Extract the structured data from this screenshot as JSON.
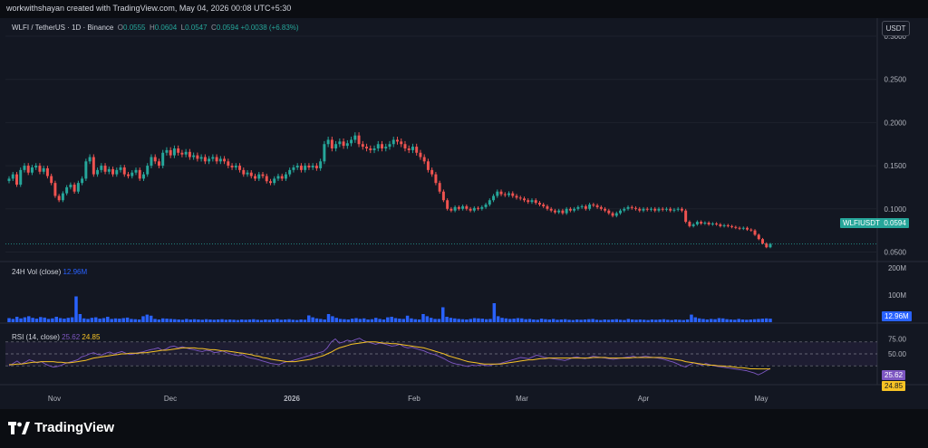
{
  "header": {
    "attribution": "workwithshayan created with TradingView.com, May 04, 2026 00:08 UTC+5:30"
  },
  "legend": {
    "symbol": "WLFI / TetherUS · 1D · Binance",
    "o_label": "O",
    "o_value": "0.0555",
    "h_label": "H",
    "h_value": "0.0604",
    "l_label": "L",
    "l_value": "0.0547",
    "c_label": "C",
    "c_value": "0.0594",
    "change": "+0.0038 (+6.83%)"
  },
  "currency_button": "USDT",
  "volume_legend": {
    "label": "24H Vol (close)",
    "value": "12.96M"
  },
  "rsi_legend": {
    "label": "RSI (14, close)",
    "rsi_value": "25.62",
    "ma_value": "24.85"
  },
  "badges": {
    "symbol": "WLFIUSDT",
    "price": "0.0594",
    "volume": "12.96M",
    "rsi": "25.62",
    "rsi_ma": "24.85"
  },
  "footer": {
    "brand": "TradingView"
  },
  "colors": {
    "up": "#26a69a",
    "down": "#ef5350",
    "volume_bar": "#2962ff",
    "rsi_line": "#7e57c2",
    "rsi_ma": "#f7c325",
    "background": "#131722"
  },
  "chart_data": [
    {
      "type": "candlestick",
      "title": "",
      "y_ticks": [
        "0.3000",
        "0.2500",
        "0.2000",
        "0.1500",
        "0.1000",
        "0.0500"
      ],
      "ylim": [
        0.04,
        0.3
      ],
      "x_ticks": [
        "Nov",
        "Dec",
        "2026",
        "Feb",
        "Mar",
        "Apr",
        "May"
      ],
      "close_series": [
        0.135,
        0.14,
        0.128,
        0.145,
        0.15,
        0.142,
        0.148,
        0.15,
        0.143,
        0.147,
        0.138,
        0.13,
        0.115,
        0.11,
        0.118,
        0.125,
        0.128,
        0.12,
        0.13,
        0.135,
        0.155,
        0.16,
        0.14,
        0.145,
        0.15,
        0.143,
        0.146,
        0.14,
        0.145,
        0.148,
        0.14,
        0.138,
        0.142,
        0.145,
        0.135,
        0.14,
        0.15,
        0.16,
        0.155,
        0.15,
        0.165,
        0.168,
        0.162,
        0.17,
        0.165,
        0.163,
        0.166,
        0.16,
        0.162,
        0.158,
        0.16,
        0.155,
        0.158,
        0.16,
        0.155,
        0.158,
        0.155,
        0.15,
        0.148,
        0.15,
        0.145,
        0.14,
        0.142,
        0.138,
        0.135,
        0.14,
        0.138,
        0.132,
        0.13,
        0.135,
        0.138,
        0.135,
        0.14,
        0.145,
        0.148,
        0.15,
        0.145,
        0.15,
        0.148,
        0.15,
        0.147,
        0.155,
        0.175,
        0.18,
        0.17,
        0.175,
        0.178,
        0.173,
        0.176,
        0.18,
        0.185,
        0.175,
        0.172,
        0.17,
        0.168,
        0.17,
        0.175,
        0.17,
        0.172,
        0.175,
        0.18,
        0.178,
        0.175,
        0.17,
        0.168,
        0.172,
        0.165,
        0.16,
        0.155,
        0.145,
        0.14,
        0.13,
        0.12,
        0.11,
        0.1,
        0.098,
        0.102,
        0.1,
        0.103,
        0.1,
        0.098,
        0.101,
        0.1,
        0.102,
        0.105,
        0.11,
        0.115,
        0.12,
        0.117,
        0.116,
        0.118,
        0.115,
        0.113,
        0.112,
        0.11,
        0.108,
        0.11,
        0.107,
        0.105,
        0.103,
        0.1,
        0.098,
        0.096,
        0.098,
        0.095,
        0.1,
        0.098,
        0.1,
        0.102,
        0.103,
        0.1,
        0.105,
        0.104,
        0.102,
        0.1,
        0.098,
        0.095,
        0.092,
        0.095,
        0.098,
        0.1,
        0.102,
        0.101,
        0.1,
        0.098,
        0.1,
        0.099,
        0.1,
        0.098,
        0.1,
        0.099,
        0.1,
        0.098,
        0.099,
        0.1,
        0.098,
        0.085,
        0.08,
        0.082,
        0.085,
        0.083,
        0.084,
        0.082,
        0.083,
        0.082,
        0.08,
        0.081,
        0.08,
        0.079,
        0.078,
        0.077,
        0.078,
        0.076,
        0.075,
        0.07,
        0.065,
        0.06,
        0.0555,
        0.0594
      ],
      "last_price": 0.0594,
      "series": [
        {
          "name": "WLFIUSDT",
          "values": "close_series"
        }
      ]
    },
    {
      "type": "bar",
      "title": "",
      "y_ticks": [
        "200M",
        "100M"
      ],
      "ylim": [
        0,
        220
      ],
      "unit": "M",
      "values": [
        15,
        12,
        20,
        14,
        18,
        22,
        16,
        13,
        19,
        17,
        12,
        14,
        20,
        15,
        13,
        16,
        18,
        95,
        30,
        14,
        12,
        16,
        18,
        13,
        15,
        20,
        12,
        14,
        13,
        15,
        17,
        12,
        11,
        10,
        22,
        28,
        24,
        12,
        10,
        14,
        13,
        12,
        11,
        10,
        9,
        12,
        10,
        11,
        10,
        9,
        11,
        10,
        9,
        10,
        11,
        9,
        10,
        9,
        8,
        10,
        9,
        10,
        11,
        9,
        8,
        10,
        9,
        10,
        12,
        9,
        10,
        11,
        9,
        8,
        10,
        9,
        25,
        18,
        14,
        12,
        10,
        30,
        22,
        16,
        12,
        11,
        10,
        13,
        15,
        12,
        14,
        10,
        11,
        16,
        12,
        10,
        18,
        20,
        15,
        13,
        12,
        24,
        14,
        11,
        10,
        30,
        22,
        16,
        12,
        12,
        55,
        20,
        16,
        14,
        12,
        11,
        10,
        12,
        15,
        14,
        13,
        11,
        12,
        70,
        22,
        16,
        14,
        12,
        13,
        15,
        14,
        11,
        12,
        10,
        9,
        13,
        11,
        10,
        12,
        9,
        10,
        11,
        9,
        8,
        10,
        9,
        10,
        11,
        12,
        9,
        8,
        10,
        9,
        10,
        11,
        9,
        8,
        12,
        10,
        9,
        10,
        9,
        8,
        10,
        9,
        10,
        11,
        9,
        8,
        10,
        9,
        8,
        10,
        28,
        18,
        14,
        12,
        10,
        12,
        11,
        15,
        14,
        11,
        10,
        9,
        12,
        10,
        9,
        10,
        11,
        12,
        13,
        14,
        12.96
      ],
      "last_value": "12.96M",
      "series": [
        {
          "name": "24H Vol (close)",
          "values": "values"
        }
      ]
    },
    {
      "type": "line",
      "title": "",
      "y_ticks": [
        "75.00",
        "50.00"
      ],
      "ylim": [
        0,
        100
      ],
      "bands": {
        "upper": 70,
        "middle": 50,
        "lower": 30
      },
      "series": [
        {
          "name": "RSI (14, close)",
          "values": [
            30,
            34,
            38,
            33,
            36,
            40,
            38,
            35,
            37,
            33,
            30,
            28,
            29,
            31,
            34,
            36,
            38,
            40,
            45,
            47,
            50,
            52,
            49,
            48,
            51,
            53,
            50,
            52,
            54,
            51,
            49,
            50,
            52,
            53,
            55,
            57,
            58,
            60,
            56,
            58,
            62,
            63,
            60,
            62,
            60,
            58,
            57,
            55,
            54,
            56,
            55,
            52,
            53,
            55,
            52,
            50,
            48,
            47,
            49,
            45,
            43,
            42,
            40,
            38,
            36,
            34,
            33,
            32,
            35,
            37,
            38,
            40,
            42,
            44,
            46,
            48,
            50,
            52,
            54,
            60,
            70,
            75,
            68,
            70,
            73,
            71,
            74,
            76,
            72,
            70,
            68,
            66,
            68,
            67,
            65,
            63,
            64,
            66,
            62,
            60,
            61,
            59,
            57,
            55,
            52,
            50,
            48,
            45,
            42,
            38,
            35,
            33,
            32,
            30,
            29,
            31,
            30,
            32,
            31,
            30,
            32,
            33,
            34,
            36,
            38,
            40,
            42,
            44,
            43,
            42,
            45,
            48,
            46,
            44,
            43,
            42,
            41,
            40,
            39,
            41,
            44,
            45,
            43,
            42,
            44,
            46,
            45,
            44,
            43,
            42,
            41,
            42,
            43,
            44,
            45,
            46,
            44,
            45,
            46,
            45,
            44,
            43,
            42,
            40,
            38,
            36,
            33,
            30,
            28,
            32,
            35,
            33,
            31,
            34,
            32,
            30,
            29,
            28,
            27,
            26,
            25,
            24,
            23,
            22,
            20,
            18,
            15,
            18,
            22,
            25.62
          ]
        },
        {
          "name": "MA",
          "values": [
            32,
            32,
            33,
            33,
            34,
            35,
            36,
            36,
            37,
            37,
            37,
            37,
            36,
            36,
            35,
            35,
            36,
            37,
            38,
            39,
            41,
            43,
            44,
            45,
            46,
            47,
            48,
            49,
            50,
            50,
            51,
            51,
            51,
            52,
            52,
            53,
            54,
            55,
            56,
            56,
            57,
            58,
            59,
            60,
            60,
            60,
            60,
            59,
            59,
            58,
            57,
            57,
            56,
            55,
            55,
            54,
            53,
            52,
            51,
            50,
            49,
            47,
            46,
            44,
            43,
            41,
            40,
            39,
            38,
            37,
            37,
            37,
            38,
            39,
            40,
            41,
            43,
            45,
            47,
            50,
            53,
            57,
            60,
            62,
            64,
            66,
            67,
            68,
            69,
            70,
            70,
            70,
            69,
            68,
            68,
            67,
            67,
            66,
            65,
            64,
            63,
            62,
            61,
            60,
            58,
            56,
            54,
            52,
            50,
            47,
            45,
            43,
            41,
            39,
            37,
            36,
            35,
            34,
            33,
            33,
            33,
            33,
            33,
            34,
            35,
            36,
            37,
            38,
            39,
            40,
            40,
            41,
            42,
            42,
            43,
            43,
            43,
            43,
            43,
            43,
            43,
            43,
            43,
            43,
            43,
            44,
            44,
            44,
            44,
            43,
            43,
            43,
            43,
            43,
            43,
            44,
            44,
            44,
            44,
            44,
            44,
            44,
            44,
            43,
            42,
            41,
            40,
            39,
            37,
            36,
            35,
            34,
            33,
            32,
            31,
            31,
            30,
            30,
            29,
            29,
            28,
            27,
            27,
            26,
            25,
            25,
            24.85,
            24.85,
            24.85,
            24.85
          ]
        }
      ],
      "rsi_last": 25.62,
      "ma_last": 24.85
    }
  ]
}
